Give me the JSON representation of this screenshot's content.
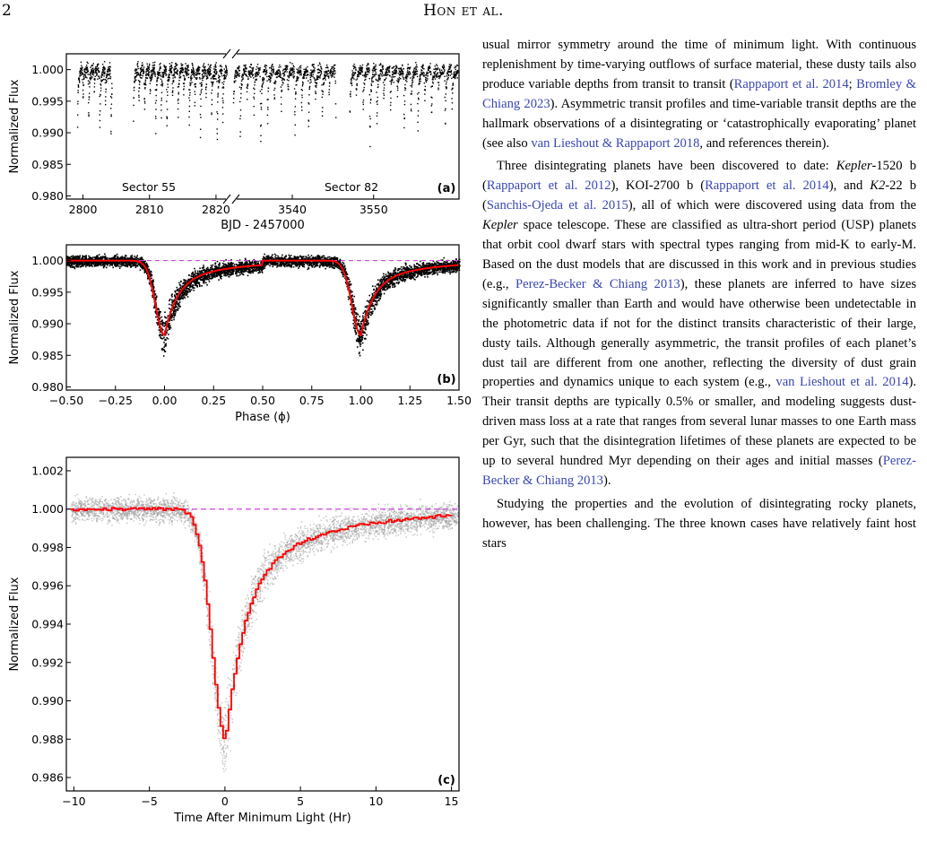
{
  "header": {
    "page_number": "2",
    "running_title": "Hon et al."
  },
  "colors": {
    "raw": "#000000",
    "binned": "#ff0000",
    "reference": "#cc44dd",
    "link": "#3a47b0"
  },
  "chart_data": [
    {
      "id": "a",
      "type": "scatter",
      "panel_label": "(a)",
      "ylabel": "Normalized Flux",
      "xlabel": "BJD - 2457000",
      "ylim": [
        0.9795,
        1.0025
      ],
      "y_ticks": [
        "1.000",
        "0.995",
        "0.990",
        "0.985",
        "0.980"
      ],
      "segments": [
        {
          "name": "Sector 55",
          "xlim": [
            2797.5,
            2822.3
          ],
          "x_ticks": [
            "2800",
            "2810",
            "2820"
          ],
          "data_start": 2799.1,
          "data_end": 2804.3,
          "gap_end": 2807.5,
          "data_end2": 2821.6
        },
        {
          "name": "Sector 82",
          "xlim": [
            3532.5,
            3560.5
          ],
          "x_ticks": [
            "3540",
            "3550"
          ],
          "data_start": 3532.7,
          "data_end": 3545.3,
          "gap_end": 3547.0,
          "data_end2": 3560.3
        }
      ],
      "period_days": 0.84,
      "transit_depths": [
        0.0096,
        0.0045,
        0.0075,
        0.0032,
        0.0088,
        0.0055,
        0.0105,
        0.0042,
        0.0068,
        0.0118,
        0.0082,
        0.0048,
        0.0062,
        0.0035,
        0.0093,
        0.0071
      ]
    },
    {
      "id": "b",
      "type": "scatter",
      "panel_label": "(b)",
      "ylabel": "Normalized Flux",
      "xlabel": "Phase (ϕ)",
      "xlim": [
        -0.5,
        1.5
      ],
      "ylim": [
        0.9795,
        1.0025
      ],
      "x_ticks": [
        "−0.50",
        "−0.25",
        "0.00",
        "0.25",
        "0.50",
        "0.75",
        "1.00",
        "1.25",
        "1.50"
      ],
      "y_ticks": [
        "1.000",
        "0.995",
        "0.990",
        "0.985",
        "0.980"
      ],
      "reference_level": 1.0,
      "min_flux": 0.9882
    },
    {
      "id": "c",
      "type": "scatter",
      "panel_label": "(c)",
      "ylabel": "Normalized Flux",
      "xlabel": "Time After Minimum Light (Hr)",
      "xlim": [
        -10.5,
        15.5
      ],
      "ylim": [
        0.9853,
        1.0027
      ],
      "x_ticks": [
        "−10",
        "−5",
        "0",
        "5",
        "10",
        "15"
      ],
      "y_ticks": [
        "1.002",
        "1.000",
        "0.998",
        "0.996",
        "0.994",
        "0.992",
        "0.990",
        "0.988",
        "0.986"
      ],
      "reference_level": 1.0,
      "min_flux": 0.988,
      "binned_profile": {
        "x": [
          -10,
          -6,
          -3,
          -2,
          -1.5,
          -1,
          -0.5,
          0,
          0.5,
          1,
          1.5,
          2,
          3,
          4,
          5,
          6,
          7,
          8,
          9,
          10,
          11,
          12,
          13,
          14,
          15
        ],
        "y": [
          1.0001,
          1.0001,
          1.0,
          0.9995,
          0.9985,
          0.9965,
          0.994,
          0.9881,
          0.9905,
          0.9945,
          0.9962,
          0.9972,
          0.9975,
          0.9982,
          0.9985,
          0.9988,
          0.9991,
          0.9993,
          0.9995,
          0.9996,
          0.9997,
          0.9998,
          0.9999,
          0.9999,
          1.0
        ]
      }
    }
  ],
  "paragraphs": [
    [
      {
        "t": "usual mirror symmetry around the time of minimum light. With continuous replenishment by time-varying outflows of surface material, these dusty tails also produce variable depths from transit to transit ("
      },
      {
        "t": "Rappaport et al. 2014",
        "c": 1
      },
      {
        "t": "; "
      },
      {
        "t": "Bromley & Chiang 2023",
        "c": 1
      },
      {
        "t": "). Asymmetric transit profiles and time-variable transit depths are the hallmark observations of a disintegrating or ‘catastrophically evaporating’ planet (see also "
      },
      {
        "t": "van Lieshout & Rappaport 2018",
        "c": 1
      },
      {
        "t": ", and references therein)."
      }
    ],
    [
      {
        "t": "Three disintegrating planets have been discovered to date: "
      },
      {
        "t": "Kepler",
        "i": 1
      },
      {
        "t": "-1520 b ("
      },
      {
        "t": "Rappaport et al. 2012",
        "c": 1
      },
      {
        "t": "), KOI-2700 b ("
      },
      {
        "t": "Rappaport et al. 2014",
        "c": 1
      },
      {
        "t": "), and "
      },
      {
        "t": "K2",
        "i": 1
      },
      {
        "t": "-22 b ("
      },
      {
        "t": "Sanchis-Ojeda et al. 2015",
        "c": 1
      },
      {
        "t": "), all of which were discovered using data from the "
      },
      {
        "t": "Kepler",
        "i": 1
      },
      {
        "t": " space telescope. These are classified as ultra-short period (USP) planets that orbit cool dwarf stars with spectral types ranging from mid-K to early-M. Based on the dust models that are discussed in this work and in previous studies (e.g., "
      },
      {
        "t": "Perez-Becker & Chiang 2013",
        "c": 1
      },
      {
        "t": "), these planets are inferred to have sizes significantly smaller than Earth and would have otherwise been undetectable in the photometric data if not for the distinct transits characteristic of their large, dusty tails. Although generally asymmetric, the transit profiles of each planet’s dust tail are different from one another, reflecting the diversity of dust grain properties and dynamics unique to each system (e.g., "
      },
      {
        "t": "van Lieshout et al. 2014",
        "c": 1
      },
      {
        "t": "). Their transit depths are typically 0.5% or smaller, and modeling suggests dust-driven mass loss at a rate that ranges from several lunar masses to one Earth mass per Gyr, such that the disintegration lifetimes of these planets are expected to be up to several hundred Myr depending on their ages and initial masses ("
      },
      {
        "t": "Perez-Becker & Chiang 2013",
        "c": 1
      },
      {
        "t": ")."
      }
    ],
    [
      {
        "t": "Studying the properties and the evolution of disintegrating rocky planets, however, has been challenging. The three known cases have relatively faint host stars"
      }
    ]
  ]
}
